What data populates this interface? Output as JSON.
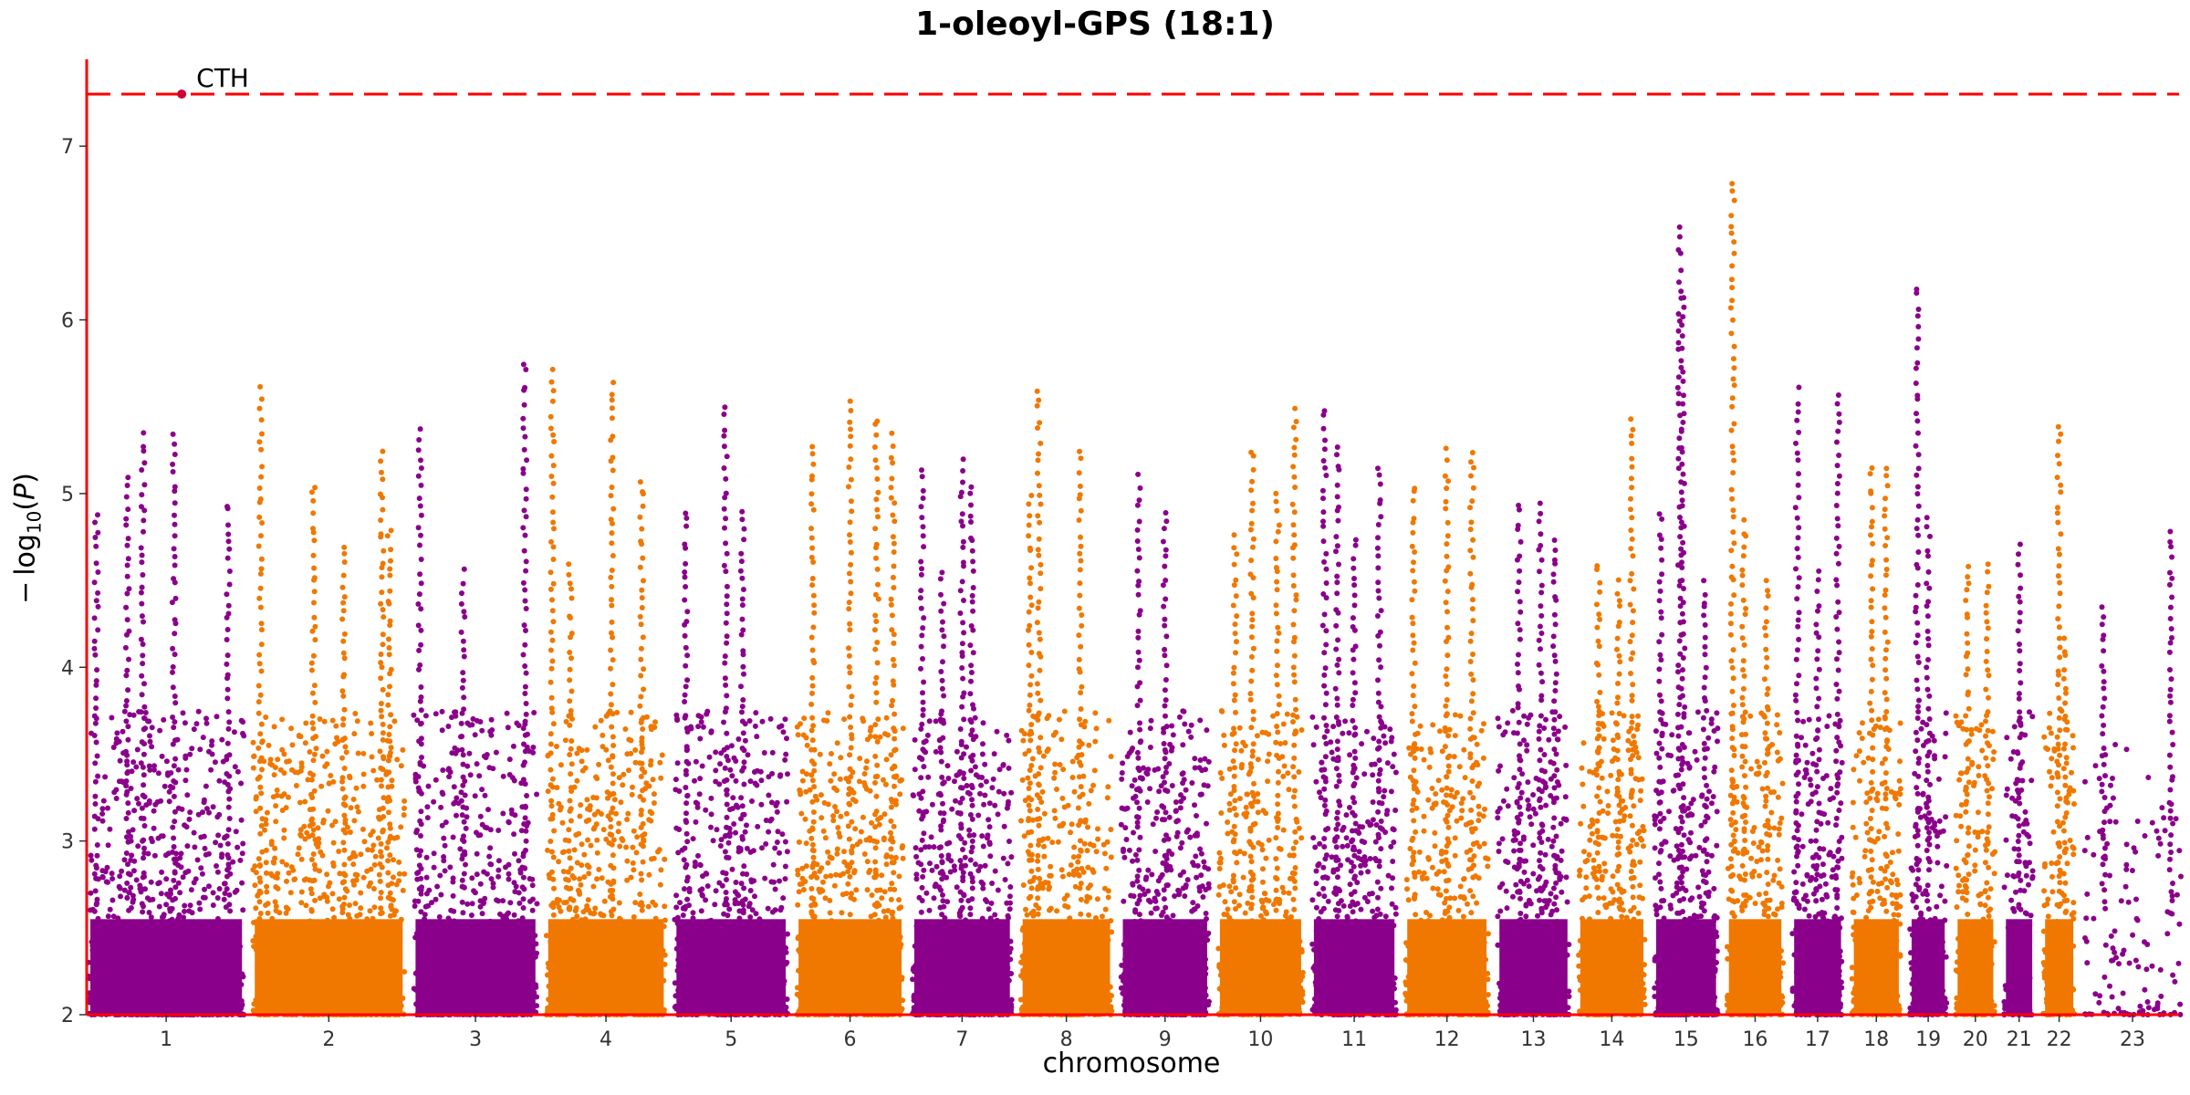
{
  "chart_data": {
    "type": "scatter",
    "title": "1-oleoyl-GPS (18:1)",
    "xlabel": "chromosome",
    "ylabel": "−log10(P)",
    "ylim": [
      2,
      7.5
    ],
    "yticks": [
      2,
      3,
      4,
      5,
      6,
      7
    ],
    "threshold": 7.3,
    "colors": {
      "odd": "#8B008B",
      "even": "#F07800",
      "threshold": "#FF0000",
      "axis": "#FF0000",
      "lead": "#CC0033"
    },
    "chromosomes": [
      {
        "label": "1",
        "length": 249,
        "peaks": [
          [
            0.05,
            4.9
          ],
          [
            0.25,
            5.1
          ],
          [
            0.35,
            5.35
          ],
          [
            0.55,
            5.35
          ],
          [
            0.9,
            4.95
          ]
        ]
      },
      {
        "label": "2",
        "length": 243,
        "peaks": [
          [
            0.05,
            5.65
          ],
          [
            0.4,
            5.05
          ],
          [
            0.6,
            4.75
          ],
          [
            0.85,
            5.25
          ],
          [
            0.9,
            4.85
          ]
        ]
      },
      {
        "label": "3",
        "length": 198,
        "peaks": [
          [
            0.05,
            5.45
          ],
          [
            0.4,
            4.6
          ],
          [
            0.9,
            5.75
          ]
        ]
      },
      {
        "label": "4",
        "length": 191,
        "peaks": [
          [
            0.05,
            5.75
          ],
          [
            0.2,
            4.65
          ],
          [
            0.55,
            5.65
          ],
          [
            0.8,
            5.15
          ]
        ]
      },
      {
        "label": "5",
        "length": 181,
        "peaks": [
          [
            0.1,
            4.9
          ],
          [
            0.45,
            5.55
          ],
          [
            0.6,
            4.9
          ]
        ]
      },
      {
        "label": "6",
        "length": 171,
        "peaks": [
          [
            0.15,
            5.35
          ],
          [
            0.5,
            5.55
          ],
          [
            0.75,
            5.5
          ],
          [
            0.9,
            5.4
          ]
        ]
      },
      {
        "label": "7",
        "length": 159,
        "peaks": [
          [
            0.1,
            5.15
          ],
          [
            0.5,
            5.25
          ],
          [
            0.6,
            5.05
          ],
          [
            0.3,
            4.6
          ]
        ]
      },
      {
        "label": "8",
        "length": 146,
        "peaks": [
          [
            0.1,
            5.05
          ],
          [
            0.2,
            5.6
          ],
          [
            0.65,
            5.3
          ]
        ]
      },
      {
        "label": "9",
        "length": 141,
        "peaks": [
          [
            0.2,
            5.15
          ],
          [
            0.5,
            4.9
          ]
        ]
      },
      {
        "label": "10",
        "length": 136,
        "peaks": [
          [
            0.2,
            4.8
          ],
          [
            0.4,
            5.25
          ],
          [
            0.7,
            5.05
          ],
          [
            0.9,
            5.55
          ]
        ]
      },
      {
        "label": "11",
        "length": 135,
        "peaks": [
          [
            0.15,
            5.5
          ],
          [
            0.3,
            5.35
          ],
          [
            0.5,
            4.75
          ],
          [
            0.8,
            5.15
          ]
        ]
      },
      {
        "label": "12",
        "length": 133,
        "peaks": [
          [
            0.1,
            5.05
          ],
          [
            0.5,
            5.3
          ],
          [
            0.8,
            5.25
          ]
        ]
      },
      {
        "label": "13",
        "length": 115,
        "peaks": [
          [
            0.3,
            5.0
          ],
          [
            0.6,
            5.0
          ],
          [
            0.8,
            4.75
          ]
        ]
      },
      {
        "label": "14",
        "length": 107,
        "peaks": [
          [
            0.3,
            4.6
          ],
          [
            0.6,
            4.55
          ],
          [
            0.8,
            5.45
          ]
        ]
      },
      {
        "label": "15",
        "length": 102,
        "peaks": [
          [
            0.1,
            4.95
          ],
          [
            0.4,
            6.55
          ],
          [
            0.45,
            6.2
          ],
          [
            0.8,
            4.55
          ]
        ]
      },
      {
        "label": "16",
        "length": 90,
        "peaks": [
          [
            0.1,
            6.8
          ],
          [
            0.3,
            4.9
          ],
          [
            0.7,
            4.55
          ]
        ]
      },
      {
        "label": "17",
        "length": 81,
        "peaks": [
          [
            0.1,
            5.65
          ],
          [
            0.5,
            4.6
          ],
          [
            0.9,
            5.65
          ]
        ]
      },
      {
        "label": "18",
        "length": 78,
        "peaks": [
          [
            0.4,
            5.15
          ],
          [
            0.7,
            5.15
          ]
        ]
      },
      {
        "label": "19",
        "length": 59,
        "peaks": [
          [
            0.2,
            6.2
          ],
          [
            0.5,
            4.9
          ]
        ]
      },
      {
        "label": "20",
        "length": 63,
        "peaks": [
          [
            0.3,
            4.6
          ],
          [
            0.8,
            4.6
          ]
        ]
      },
      {
        "label": "21",
        "length": 48,
        "peaks": [
          [
            0.5,
            4.75
          ]
        ]
      },
      {
        "label": "22",
        "length": 51,
        "peaks": [
          [
            0.5,
            5.4
          ],
          [
            0.7,
            4.2
          ]
        ]
      },
      {
        "label": "23",
        "length": 155,
        "peaks": [
          [
            0.2,
            4.35
          ],
          [
            0.9,
            4.85
          ]
        ],
        "sparse": true
      }
    ],
    "annotations": [
      {
        "text": "CTH",
        "chromosome": "1",
        "pos": 0.6,
        "y": 7.3
      }
    ]
  }
}
